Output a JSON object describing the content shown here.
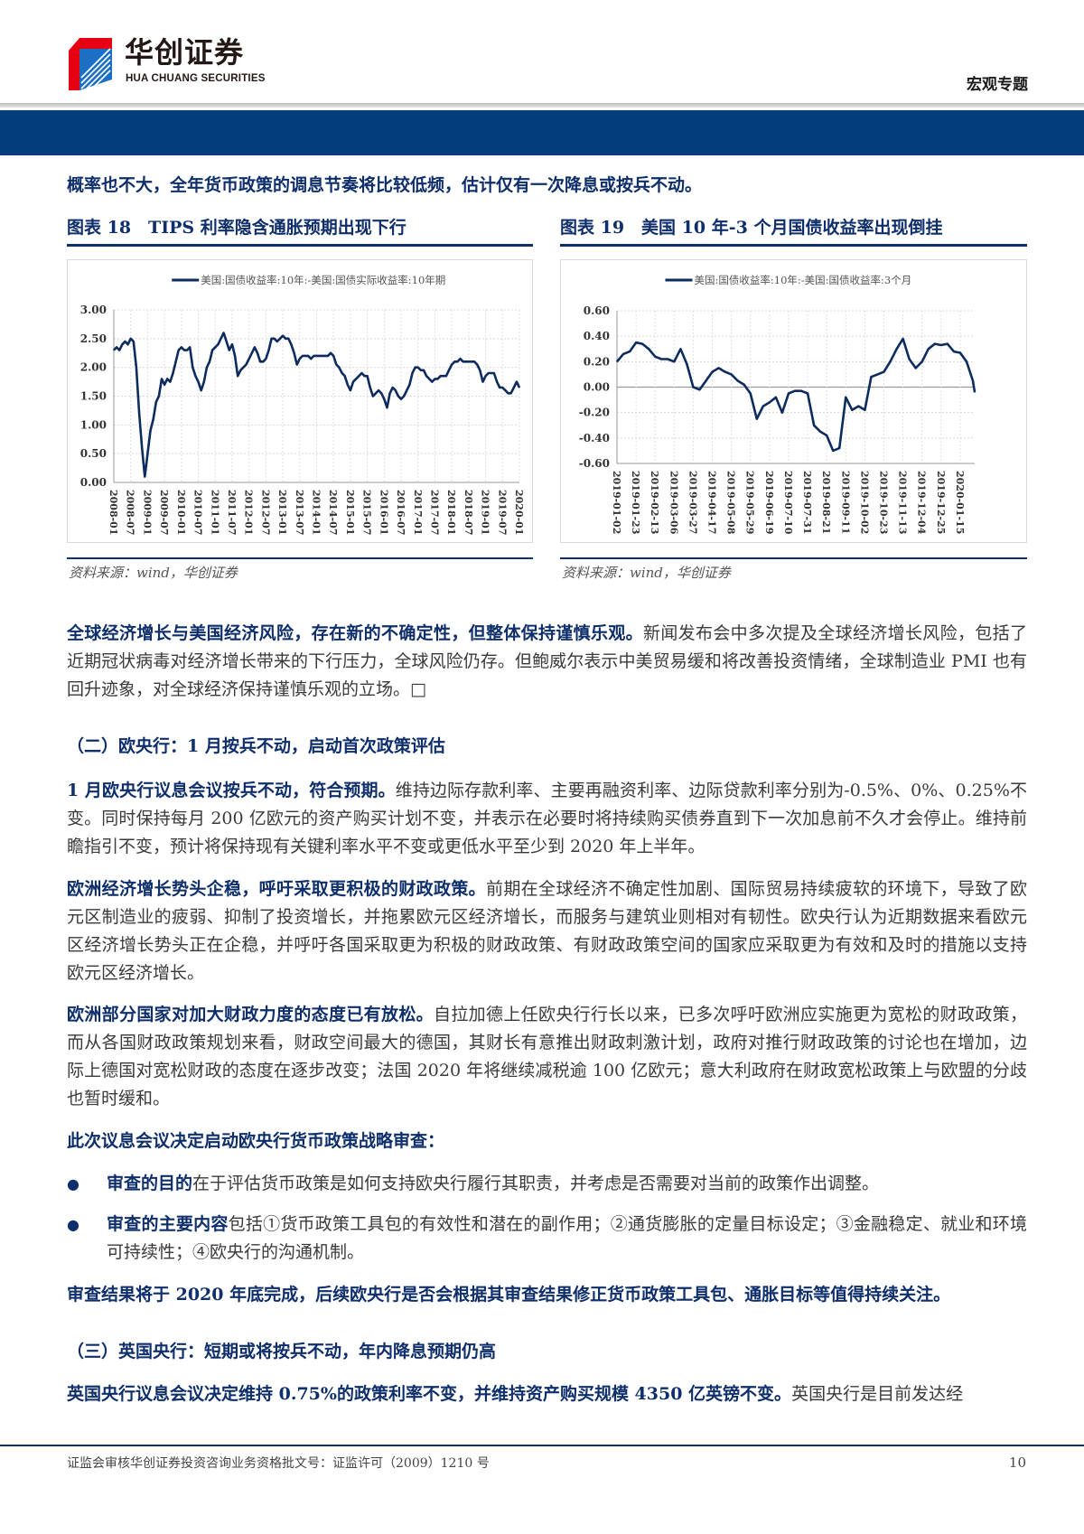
{
  "header": {
    "logo_cn": "华创证券",
    "logo_en": "HUA CHUANG SECURITIES",
    "section_tag": "宏观专题",
    "colors": {
      "band": "#033d7c",
      "accent": "#0e2f6b",
      "logo_red": "#e60012",
      "logo_blue": "#1c6fc4"
    }
  },
  "intro_line": "概率也不大，全年货币政策的调息节奏将比较低频，估计仅有一次降息或按兵不动。",
  "figures": [
    {
      "title": "图表 18　TIPS 利率隐含通胀预期出现下行",
      "source": "资料来源：wind，华创证券"
    },
    {
      "title": "图表 19　美国 10 年-3 个月国债收益率出现倒挂",
      "source": "资料来源：wind，华创证券"
    }
  ],
  "chart_data": [
    {
      "type": "line",
      "legend": [
        "美国:国债收益率:10年:-美国:国债实际收益率:10年期"
      ],
      "legend_placement": "top",
      "grid": true,
      "ylim": [
        0,
        3
      ],
      "yticks": [
        "0.00",
        "0.50",
        "1.00",
        "1.50",
        "2.00",
        "2.50",
        "3.00"
      ],
      "xticks": [
        "2008-01",
        "2008-07",
        "2009-01",
        "2009-07",
        "2010-01",
        "2010-07",
        "2011-01",
        "2011-07",
        "2012-01",
        "2012-07",
        "2013-01",
        "2013-07",
        "2014-01",
        "2014-07",
        "2015-01",
        "2015-07",
        "2016-01",
        "2016-07",
        "2017-01",
        "2017-07",
        "2018-01",
        "2018-07",
        "2019-01",
        "2019-07",
        "2020-01"
      ],
      "series": [
        {
          "name": "美国:国债收益率:10年:-美国:国债实际收益率:10年期",
          "color": "#0d2b5e",
          "start": "2008-01",
          "frequency": "monthly",
          "values": [
            2.3,
            2.35,
            2.3,
            2.4,
            2.45,
            2.4,
            2.5,
            2.45,
            2.0,
            1.2,
            0.6,
            0.1,
            0.5,
            0.9,
            1.1,
            1.4,
            1.5,
            1.8,
            1.7,
            1.8,
            1.75,
            1.9,
            2.1,
            2.3,
            2.35,
            2.3,
            2.3,
            2.35,
            2.0,
            1.85,
            1.75,
            1.6,
            1.75,
            2.0,
            2.1,
            2.3,
            2.35,
            2.4,
            2.5,
            2.6,
            2.45,
            2.3,
            2.4,
            2.2,
            1.85,
            1.95,
            2.0,
            2.05,
            2.15,
            2.25,
            2.35,
            2.25,
            2.1,
            2.1,
            2.15,
            2.3,
            2.5,
            2.5,
            2.45,
            2.5,
            2.55,
            2.5,
            2.5,
            2.4,
            2.25,
            2.05,
            2.15,
            2.2,
            2.2,
            2.2,
            2.15,
            2.2,
            2.2,
            2.2,
            2.2,
            2.2,
            2.2,
            2.25,
            2.2,
            2.05,
            2.0,
            1.9,
            1.85,
            1.7,
            1.6,
            1.75,
            1.8,
            1.85,
            1.9,
            1.85,
            1.85,
            1.65,
            1.5,
            1.55,
            1.6,
            1.55,
            1.45,
            1.3,
            1.55,
            1.65,
            1.6,
            1.5,
            1.45,
            1.5,
            1.6,
            1.7,
            1.9,
            2.0,
            2.0,
            1.95,
            1.95,
            1.85,
            1.8,
            1.75,
            1.8,
            1.8,
            1.85,
            1.85,
            1.85,
            1.95,
            2.05,
            2.1,
            2.1,
            2.15,
            2.1,
            2.1,
            2.1,
            2.1,
            2.1,
            2.05,
            1.95,
            1.75,
            1.85,
            1.9,
            1.9,
            1.9,
            1.75,
            1.65,
            1.65,
            1.6,
            1.55,
            1.55,
            1.65,
            1.75,
            1.65
          ]
        }
      ]
    },
    {
      "type": "line",
      "legend": [
        "美国:国债收益率:10年:-美国:国债收益率:3个月"
      ],
      "legend_placement": "top",
      "grid": true,
      "ylim": [
        -0.6,
        0.6
      ],
      "yticks": [
        "-0.60",
        "-0.40",
        "-0.20",
        "0.00",
        "0.20",
        "0.40",
        "0.60"
      ],
      "xticks": [
        "2019-01-02",
        "2019-01-23",
        "2019-02-13",
        "2019-03-06",
        "2019-03-27",
        "2019-04-17",
        "2019-05-08",
        "2019-05-29",
        "2019-06-19",
        "2019-07-10",
        "2019-07-31",
        "2019-08-21",
        "2019-09-11",
        "2019-10-02",
        "2019-10-23",
        "2019-11-13",
        "2019-12-04",
        "2019-12-25",
        "2020-01-15"
      ],
      "series": [
        {
          "name": "美国:国债收益率:10年:-美国:国债收益率:3个月",
          "color": "#0d2b5e",
          "x": [
            "2019-01-02",
            "2019-01-09",
            "2019-01-16",
            "2019-01-23",
            "2019-01-30",
            "2019-02-06",
            "2019-02-13",
            "2019-02-20",
            "2019-02-27",
            "2019-03-06",
            "2019-03-13",
            "2019-03-20",
            "2019-03-27",
            "2019-04-03",
            "2019-04-10",
            "2019-04-17",
            "2019-04-24",
            "2019-05-01",
            "2019-05-08",
            "2019-05-15",
            "2019-05-22",
            "2019-05-29",
            "2019-06-05",
            "2019-06-12",
            "2019-06-19",
            "2019-06-26",
            "2019-07-03",
            "2019-07-10",
            "2019-07-17",
            "2019-07-24",
            "2019-07-31",
            "2019-08-07",
            "2019-08-14",
            "2019-08-21",
            "2019-08-28",
            "2019-09-04",
            "2019-09-11",
            "2019-09-18",
            "2019-09-25",
            "2019-10-02",
            "2019-10-09",
            "2019-10-16",
            "2019-10-23",
            "2019-10-30",
            "2019-11-06",
            "2019-11-13",
            "2019-11-20",
            "2019-11-27",
            "2019-12-04",
            "2019-12-11",
            "2019-12-18",
            "2019-12-25",
            "2020-01-01",
            "2020-01-08",
            "2020-01-15",
            "2020-01-22",
            "2020-01-29",
            "2020-01-31"
          ],
          "values": [
            0.2,
            0.26,
            0.28,
            0.35,
            0.34,
            0.3,
            0.24,
            0.22,
            0.22,
            0.2,
            0.3,
            0.18,
            0.0,
            -0.02,
            0.05,
            0.12,
            0.15,
            0.12,
            0.1,
            0.05,
            0.02,
            -0.05,
            -0.25,
            -0.15,
            -0.12,
            -0.08,
            -0.2,
            -0.05,
            -0.03,
            -0.03,
            -0.05,
            -0.3,
            -0.35,
            -0.38,
            -0.5,
            -0.48,
            -0.08,
            -0.18,
            -0.15,
            -0.18,
            0.08,
            0.1,
            0.12,
            0.2,
            0.3,
            0.38,
            0.22,
            0.15,
            0.2,
            0.3,
            0.34,
            0.33,
            0.34,
            0.28,
            0.27,
            0.2,
            0.05,
            -0.04
          ]
        }
      ]
    }
  ],
  "sections": {
    "p1_bold": "全球经济增长与美国经济风险，存在新的不确定性，但整体保持谨慎乐观。",
    "p1_text": "新闻发布会中多次提及全球经济增长风险，包括了近期冠状病毒对经济增长带来的下行压力，全球风险仍存。但鲍威尔表示中美贸易缓和将改善投资情绪，全球制造业 PMI 也有回升迹象，对全球经济保持谨慎乐观的立场。□",
    "h2": "（二）欧央行：1 月按兵不动，启动首次政策评估",
    "p2_bold": "1 月欧央行议息会议按兵不动，符合预期。",
    "p2_text": "维持边际存款利率、主要再融资利率、边际贷款利率分别为-0.5%、0%、0.25%不变。同时保持每月 200 亿欧元的资产购买计划不变，并表示在必要时将持续购买债券直到下一次加息前不久才会停止。维持前瞻指引不变，预计将保持现有关键利率水平不变或更低水平至少到 2020 年上半年。",
    "p3_bold": "欧洲经济增长势头企稳，呼吁采取更积极的财政政策。",
    "p3_text": "前期在全球经济不确定性加剧、国际贸易持续疲软的环境下，导致了欧元区制造业的疲弱、抑制了投资增长，并拖累欧元区经济增长，而服务与建筑业则相对有韧性。欧央行认为近期数据来看欧元区经济增长势头正在企稳，并呼吁各国采取更为积极的财政政策、有财政政策空间的国家应采取更为有效和及时的措施以支持欧元区经济增长。",
    "p4_bold": "欧洲部分国家对加大财政力度的态度已有放松。",
    "p4_text": "自拉加德上任欧央行行长以来，已多次呼吁欧洲应实施更为宽松的财政政策，而从各国财政政策规划来看，财政空间最大的德国，其财长有意推出财政刺激计划，政府对推行财政政策的讨论也在增加，边际上德国对宽松财政的态度在逐步改变；法国 2020 年将继续减税逾 100 亿欧元；意大利政府在财政宽松政策上与欧盟的分歧也暂时缓和。",
    "p5_bold": "此次议息会议决定启动欧央行货币政策战略审查：",
    "bullets": [
      {
        "bold": "审查的目的",
        "text": "在于评估货币政策是如何支持欧央行履行其职责，并考虑是否需要对当前的政策作出调整。"
      },
      {
        "bold": "审查的主要内容",
        "text": "包括①货币政策工具包的有效性和潜在的副作用；②通货膨胀的定量目标设定；③金融稳定、就业和环境可持续性；④欧央行的沟通机制。"
      }
    ],
    "p6_bold": "审查结果将于 2020 年底完成，后续欧央行是否会根据其审查结果修正货币政策工具包、通胀目标等值得持续关注。",
    "h3": "（三）英国央行：短期或将按兵不动，年内降息预期仍高",
    "p7_bold": "英国央行议息会议决定维持 0.75%的政策利率不变，并维持资产购买规模 4350 亿英镑不变。",
    "p7_text": "英国央行是目前发达经"
  },
  "footer": {
    "license": "证监会审核华创证券投资咨询业务资格批文号：证监许可（2009）1210 号",
    "page": "10"
  }
}
